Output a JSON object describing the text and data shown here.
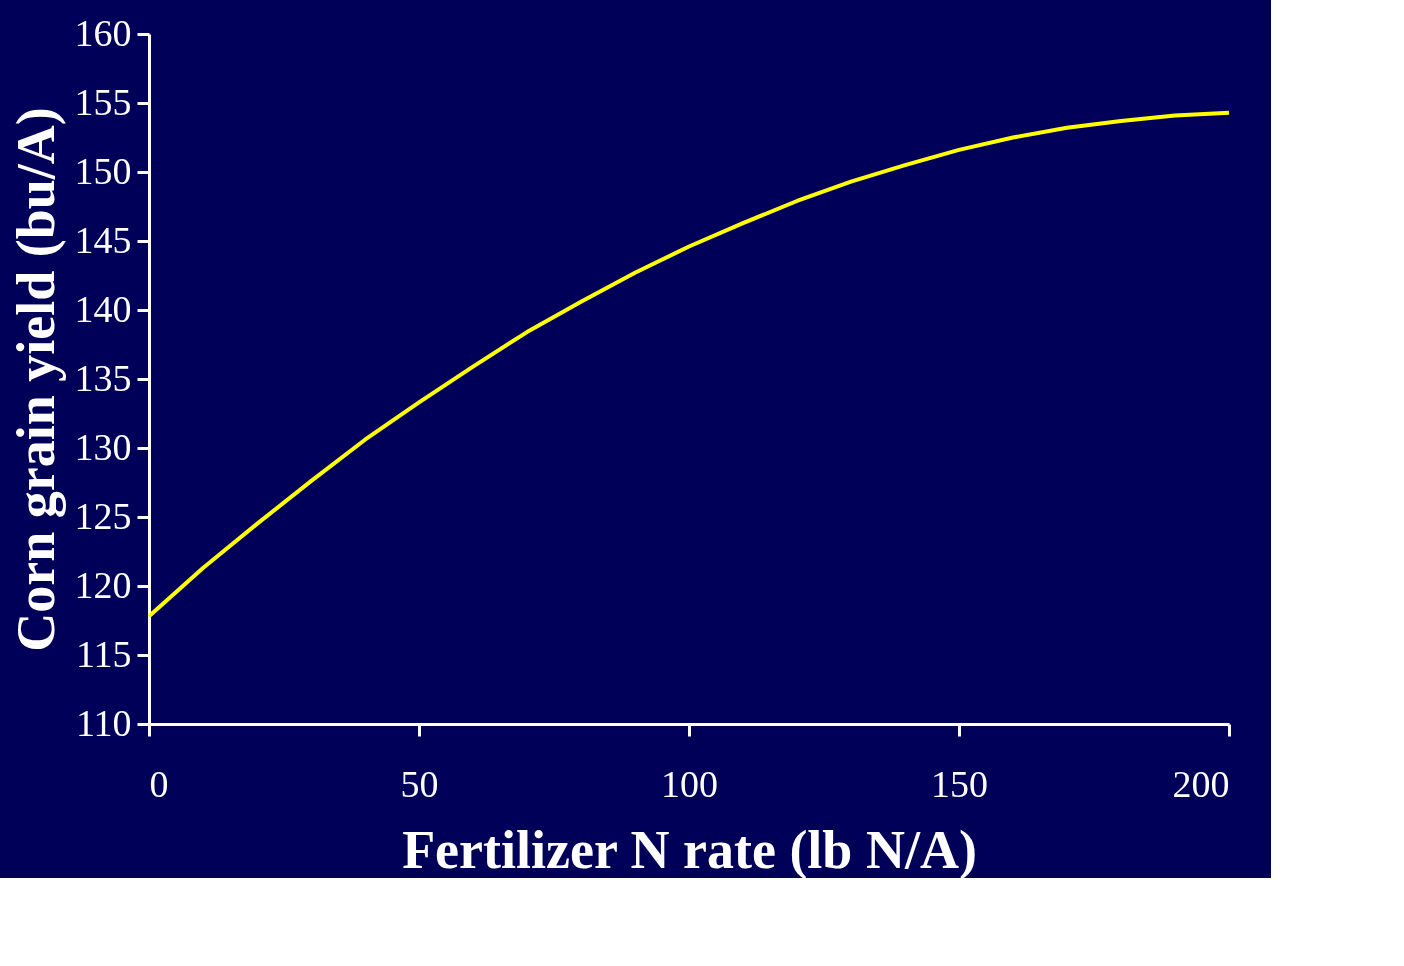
{
  "chart_data": {
    "type": "line",
    "xlabel": "Fertilizer N rate (lb N/A)",
    "ylabel": "Corn grain yield (bu/A)",
    "x": [
      0,
      10,
      20,
      30,
      40,
      50,
      60,
      70,
      80,
      90,
      100,
      110,
      120,
      130,
      140,
      150,
      160,
      170,
      180,
      190,
      200
    ],
    "series": [
      {
        "color": "#ffff00",
        "values": [
          117.8,
          121.3,
          124.5,
          127.6,
          130.6,
          133.3,
          135.9,
          138.4,
          140.6,
          142.7,
          144.6,
          146.3,
          147.9,
          149.3,
          150.5,
          151.6,
          152.5,
          153.2,
          153.7,
          154.1,
          154.3
        ]
      }
    ],
    "xlim": [
      0,
      200
    ],
    "xticks": [
      0,
      50,
      100,
      150,
      200
    ],
    "ylim": [
      110,
      160
    ],
    "yticks": [
      110,
      115,
      120,
      125,
      130,
      135,
      140,
      145,
      150,
      155,
      160
    ],
    "grid": false,
    "legend": false,
    "marker": "none",
    "line_style": "solid"
  }
}
